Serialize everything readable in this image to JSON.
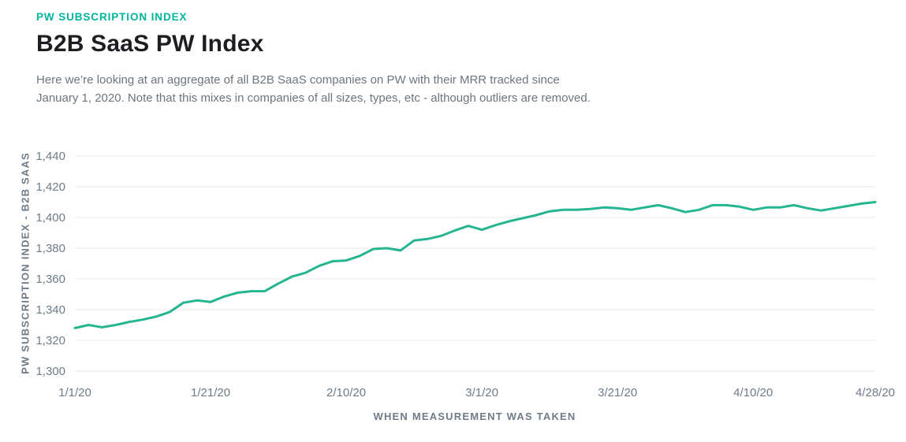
{
  "page": {
    "eyebrow": "PW SUBSCRIPTION INDEX",
    "title": "B2B SaaS PW Index",
    "description_lines": [
      "Here we’re looking at an aggregate of all B2B SaaS companies on PW with their MRR tracked since",
      "January 1, 2020. Note that this mixes in companies of all sizes, types, etc - although outliers are removed."
    ]
  },
  "colors": {
    "accent_teal": "#00b49e",
    "line_teal_green": "#25b592",
    "axis_text_gray": "#6e7b89",
    "gridline_gray": "#e8eaed",
    "title_black": "#1c1e21",
    "description_gray": "#6b7580"
  },
  "chart_data": {
    "type": "line",
    "title": "B2B SaaS PW Index",
    "xlabel": "WHEN MEASUREMENT WAS TAKEN",
    "ylabel": "PW SUBSCRIPTION INDEX - B2B SAAS",
    "ylim": [
      1300,
      1440
    ],
    "y_tick_labels": [
      "1,300",
      "1,320",
      "1,340",
      "1,360",
      "1,380",
      "1,400",
      "1,420",
      "1,440"
    ],
    "x_tick_labels": [
      "1/1/20",
      "1/21/20",
      "2/10/20",
      "3/1/20",
      "3/21/20",
      "4/10/20",
      "4/28/20"
    ],
    "x_tick_days": [
      0,
      20,
      40,
      60,
      80,
      100,
      118
    ],
    "grid": "horizontal-only",
    "legend": "none",
    "x": [
      "1/1/20",
      "1/3/20",
      "1/5/20",
      "1/7/20",
      "1/9/20",
      "1/11/20",
      "1/13/20",
      "1/15/20",
      "1/17/20",
      "1/19/20",
      "1/21/20",
      "1/23/20",
      "1/25/20",
      "1/27/20",
      "1/29/20",
      "1/31/20",
      "2/2/20",
      "2/4/20",
      "2/6/20",
      "2/8/20",
      "2/10/20",
      "2/12/20",
      "2/14/20",
      "2/16/20",
      "2/18/20",
      "2/20/20",
      "2/22/20",
      "2/24/20",
      "2/26/20",
      "2/28/20",
      "3/1/20",
      "3/3/20",
      "3/5/20",
      "3/7/20",
      "3/9/20",
      "3/11/20",
      "3/13/20",
      "3/15/20",
      "3/17/20",
      "3/19/20",
      "3/21/20",
      "3/23/20",
      "3/25/20",
      "3/27/20",
      "3/29/20",
      "3/31/20",
      "4/2/20",
      "4/4/20",
      "4/6/20",
      "4/8/20",
      "4/10/20",
      "4/12/20",
      "4/14/20",
      "4/16/20",
      "4/18/20",
      "4/20/20",
      "4/22/20",
      "4/24/20",
      "4/26/20",
      "4/28/20"
    ],
    "series": [
      {
        "name": "PW Subscription Index - B2B SaaS",
        "values": [
          1328,
          1330,
          1328.5,
          1330,
          1332,
          1333.5,
          1335.5,
          1338.5,
          1344.5,
          1346,
          1345,
          1348.5,
          1351,
          1352,
          1352,
          1357,
          1361.5,
          1364,
          1368.5,
          1371.5,
          1372,
          1375,
          1379.5,
          1380,
          1378.5,
          1385,
          1386,
          1388,
          1391.5,
          1394.5,
          1392,
          1395,
          1397.5,
          1399.5,
          1401.5,
          1404,
          1405,
          1405,
          1405.5,
          1406.5,
          1406,
          1405,
          1406.5,
          1408,
          1406,
          1403.5,
          1405,
          1408,
          1408,
          1407,
          1405,
          1406.5,
          1406.5,
          1408,
          1406,
          1404.5,
          1406,
          1407.5,
          1409,
          1410
        ]
      }
    ]
  }
}
